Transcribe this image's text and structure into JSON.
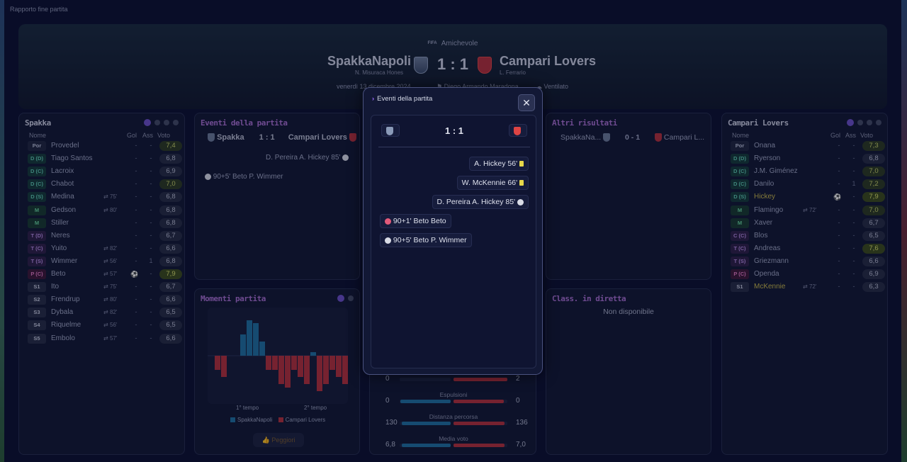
{
  "window": {
    "title": "Rapporto fine partita"
  },
  "header": {
    "competition": "Amichevole",
    "competition_badge": "FIFA",
    "home_team": "SpakkaNapoli",
    "home_coach": "N. Misuraca Hones",
    "away_team": "Campari Lovers",
    "away_coach": "L. Ferrario",
    "score": "1 : 1",
    "date": "venerdì 13 dicembre 2024",
    "stadium": "Diego Armando Maradona",
    "weather": "Ventilato"
  },
  "home_roster": {
    "title": "Spakka",
    "headers": {
      "name": "Nome",
      "gol": "Gol",
      "ass": "Ass",
      "voto": "Voto"
    },
    "players": [
      {
        "pos": "Por",
        "type": "por",
        "name": "Provedel",
        "gol": "-",
        "ass": "-",
        "voto": "7,4",
        "vclass": "good"
      },
      {
        "pos": "D (D)",
        "type": "d",
        "name": "Tiago Santos",
        "gol": "-",
        "ass": "-",
        "voto": "6,8",
        "vclass": ""
      },
      {
        "pos": "D (C)",
        "type": "d",
        "name": "Lacroix",
        "gol": "-",
        "ass": "-",
        "voto": "6,9",
        "vclass": ""
      },
      {
        "pos": "D (C)",
        "type": "d",
        "name": "Chabot",
        "gol": "-",
        "ass": "-",
        "voto": "7,0",
        "vclass": "good"
      },
      {
        "pos": "D (S)",
        "type": "d",
        "name": "Medina",
        "sub": "75'",
        "gol": "-",
        "ass": "-",
        "voto": "6,8",
        "vclass": ""
      },
      {
        "pos": "M",
        "type": "m",
        "name": "Gedson",
        "sub": "80'",
        "gol": "-",
        "ass": "-",
        "voto": "6,8",
        "vclass": ""
      },
      {
        "pos": "M",
        "type": "m",
        "name": "Stiller",
        "gol": "-",
        "ass": "-",
        "voto": "6,8",
        "vclass": ""
      },
      {
        "pos": "T (D)",
        "type": "t",
        "name": "Neres",
        "gol": "-",
        "ass": "-",
        "voto": "6,7",
        "vclass": ""
      },
      {
        "pos": "T (C)",
        "type": "t",
        "name": "Yuito",
        "sub": "82'",
        "gol": "-",
        "ass": "-",
        "voto": "6,6",
        "vclass": ""
      },
      {
        "pos": "T (S)",
        "type": "t",
        "name": "Wimmer",
        "sub": "56'",
        "gol": "-",
        "ass": "1",
        "voto": "6,8",
        "vclass": ""
      },
      {
        "pos": "P (C)",
        "type": "p",
        "name": "Beto",
        "sub": "57'",
        "goal_icon": true,
        "gol": "",
        "ass": "-",
        "voto": "7,9",
        "vclass": "best"
      },
      {
        "pos": "S1",
        "type": "s",
        "name": "Ito",
        "sub": "75'",
        "gol": "-",
        "ass": "-",
        "voto": "6,7",
        "vclass": ""
      },
      {
        "pos": "S2",
        "type": "s",
        "name": "Frendrup",
        "sub": "80'",
        "gol": "-",
        "ass": "-",
        "voto": "6,6",
        "vclass": ""
      },
      {
        "pos": "S3",
        "type": "s",
        "name": "Dybala",
        "sub": "82'",
        "gol": "-",
        "ass": "-",
        "voto": "6,5",
        "vclass": ""
      },
      {
        "pos": "S4",
        "type": "s",
        "name": "Riquelme",
        "sub": "56'",
        "gol": "-",
        "ass": "-",
        "voto": "6,5",
        "vclass": ""
      },
      {
        "pos": "S5",
        "type": "s",
        "name": "Embolo",
        "sub": "57'",
        "gol": "-",
        "ass": "-",
        "voto": "6,6",
        "vclass": ""
      }
    ]
  },
  "away_roster": {
    "title": "Campari Lovers",
    "headers": {
      "name": "Nome",
      "gol": "Gol",
      "ass": "Ass",
      "voto": "Voto"
    },
    "players": [
      {
        "pos": "Por",
        "type": "por",
        "name": "Onana",
        "gol": "-",
        "ass": "-",
        "voto": "7,3",
        "vclass": "good"
      },
      {
        "pos": "D (D)",
        "type": "d",
        "name": "Ryerson",
        "gol": "-",
        "ass": "-",
        "voto": "6,8",
        "vclass": ""
      },
      {
        "pos": "D (C)",
        "type": "d",
        "name": "J.M. Giménez",
        "gol": "-",
        "ass": "-",
        "voto": "7,0",
        "vclass": "good"
      },
      {
        "pos": "D (C)",
        "type": "d",
        "name": "Danilo",
        "gol": "-",
        "ass": "1",
        "voto": "7,2",
        "vclass": "good"
      },
      {
        "pos": "D (S)",
        "type": "d",
        "name": "Hickey",
        "hl": true,
        "goal_icon": true,
        "gol": "",
        "ass": "-",
        "voto": "7,9",
        "vclass": "best"
      },
      {
        "pos": "M",
        "type": "m",
        "name": "Flamingo",
        "sub": "72'",
        "gol": "-",
        "ass": "-",
        "voto": "7,0",
        "vclass": "good"
      },
      {
        "pos": "M",
        "type": "m",
        "name": "Xaver",
        "gol": "-",
        "ass": "-",
        "voto": "6,7",
        "vclass": ""
      },
      {
        "pos": "C (C)",
        "type": "t",
        "name": "Blos",
        "gol": "-",
        "ass": "-",
        "voto": "6,5",
        "vclass": ""
      },
      {
        "pos": "T (C)",
        "type": "t",
        "name": "Andreas",
        "gol": "-",
        "ass": "-",
        "voto": "7,6",
        "vclass": "best"
      },
      {
        "pos": "T (S)",
        "type": "t",
        "name": "Griezmann",
        "gol": "-",
        "ass": "-",
        "voto": "6,6",
        "vclass": ""
      },
      {
        "pos": "P (C)",
        "type": "p",
        "name": "Openda",
        "gol": "-",
        "ass": "-",
        "voto": "6,9",
        "vclass": ""
      },
      {
        "pos": "S1",
        "type": "s",
        "name": "McKennie",
        "hl": true,
        "sub": "72'",
        "gol": "-",
        "ass": "-",
        "voto": "6,3",
        "vclass": ""
      }
    ]
  },
  "events_panel": {
    "title": "Eventi della partita",
    "home": "Spakka",
    "away": "Campari Lovers",
    "score": "1 : 1",
    "ev1": "D. Pereira  A. Hickey 85'",
    "ev2": "90+5'  Beto  P. Wimmer"
  },
  "moments_panel": {
    "title": "Momenti partita",
    "label_first": "1° tempo",
    "label_second": "2° tempo",
    "legend_home": "SpakkaNapoli",
    "legend_away": "Campari Lovers",
    "button_worst": "Peggiori"
  },
  "chart_data": {
    "type": "bar",
    "series": [
      {
        "name": "SpakkaNapoli",
        "values": [
          0,
          0,
          0,
          0,
          3,
          5,
          4.6,
          2,
          0,
          0,
          0,
          0,
          0,
          0,
          0,
          0.5,
          0,
          0,
          0,
          0,
          0,
          0,
          0,
          0,
          0
        ]
      },
      {
        "name": "Campari Lovers",
        "values": [
          2,
          3,
          0,
          0,
          0,
          0,
          0,
          0,
          2,
          2,
          4,
          4.5,
          2,
          3,
          4,
          0,
          5,
          4,
          2,
          3,
          4,
          2,
          1,
          0,
          0
        ]
      }
    ],
    "home_color": "#1f6fa0",
    "away_color": "#b3303c"
  },
  "stats_panel": {
    "rows": [
      {
        "label": "",
        "home": "0",
        "away": "2",
        "home_frac": 0.0,
        "away_frac": 1.0
      },
      {
        "label": "Espulsioni",
        "home": "0",
        "away": "0",
        "home_frac": 0.5,
        "away_frac": 0.5
      },
      {
        "label": "Distanza percorsa",
        "home": "130",
        "away": "136",
        "home_frac": 0.49,
        "away_frac": 0.51
      },
      {
        "label": "Media voto",
        "home": "6,8",
        "away": "7,0",
        "home_frac": 0.49,
        "away_frac": 0.51
      }
    ]
  },
  "other_results": {
    "title": "Altri risultati",
    "home": "SpakkaNa...",
    "score": "0 - 1",
    "away": "Campari L..."
  },
  "live_table": {
    "title": "Class. in diretta",
    "status": "Non disponibile"
  },
  "modal": {
    "title": "Eventi della partita",
    "score": "1 : 1",
    "events": [
      {
        "text": "A. Hickey  56'",
        "side": "away",
        "icon": "yellow-card"
      },
      {
        "text": "W. McKennie  66'",
        "side": "away",
        "icon": "yellow-card"
      },
      {
        "text": "D. Pereira  A. Hickey  85'",
        "side": "away",
        "icon": "goal"
      },
      {
        "text": "90+1'  Beto  Beto",
        "side": "home",
        "icon": "own-goal"
      },
      {
        "text": "90+5'  Beto  P. Wimmer",
        "side": "home",
        "icon": "goal"
      }
    ]
  },
  "colors": {
    "accent": "#6b4fc7",
    "home": "#1f6fa0",
    "away": "#b3303c",
    "best_vote": "#d7e06a"
  }
}
